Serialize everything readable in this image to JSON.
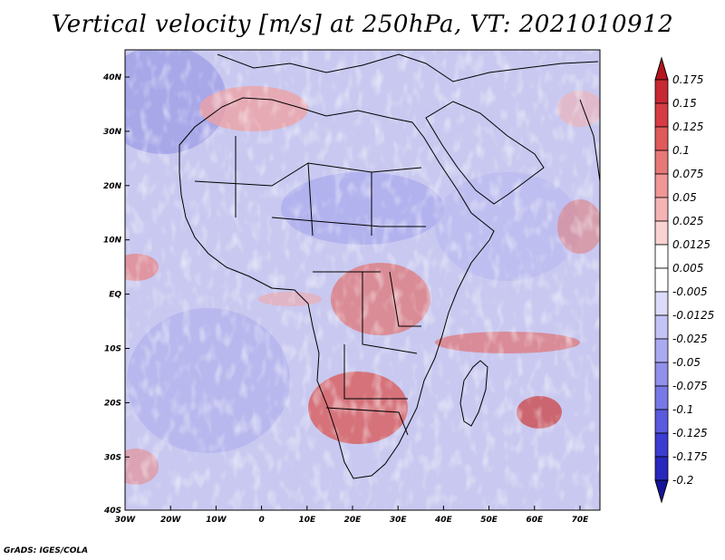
{
  "title": "Vertical velocity [m/s] at 250hPa, VT: 2021010912",
  "footer": "GrADS: IGES/COLA",
  "lat_labels": [
    "40N",
    "30N",
    "20N",
    "10N",
    "EQ",
    "10S",
    "20S",
    "30S",
    "40S"
  ],
  "lon_labels": [
    "30W",
    "20W",
    "10W",
    "0",
    "10E",
    "20E",
    "30E",
    "40E",
    "50E",
    "60E",
    "70E"
  ],
  "colorbar": {
    "labels": [
      "0.175",
      "0.15",
      "0.125",
      "0.1",
      "0.075",
      "0.05",
      "0.025",
      "0.0125",
      "0.005",
      "-0.005",
      "-0.0125",
      "-0.025",
      "-0.05",
      "-0.075",
      "-0.1",
      "-0.125",
      "-0.175",
      "-0.2"
    ],
    "colors": [
      "#b4141e",
      "#c82832",
      "#d73c44",
      "#e05a5a",
      "#e87878",
      "#f09696",
      "#f5b4b4",
      "#fad2d2",
      "#ffffff",
      "#ffffff",
      "#dcdcfa",
      "#c3c3f5",
      "#aaaaf0",
      "#9191eb",
      "#7878e6",
      "#5a5ade",
      "#3c3cd2",
      "#2828be",
      "#14149b"
    ]
  },
  "units": "m/s",
  "level": "250hPa",
  "valid_time": "2021010912"
}
